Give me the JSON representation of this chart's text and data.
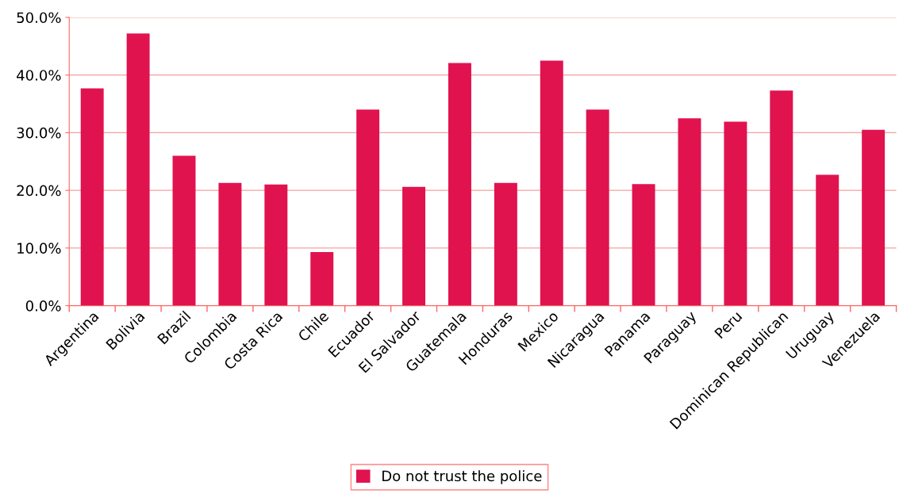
{
  "chart_data": {
    "type": "bar",
    "categories": [
      "Argentina",
      "Bolivia",
      "Brazil",
      "Colombia",
      "Costa Rica",
      "Chile",
      "Ecuador",
      "El Salvador",
      "Guatemala",
      "Honduras",
      "Mexico",
      "Nicaragua",
      "Panama",
      "Paraguay",
      "Peru",
      "Dominican Republican",
      "Uruguay",
      "Venezuela"
    ],
    "series": [
      {
        "name": "Do not trust the police",
        "color": "#e0134f",
        "values": [
          37.7,
          47.2,
          26.0,
          21.3,
          21.0,
          9.3,
          34.0,
          20.6,
          42.1,
          21.3,
          42.5,
          34.0,
          21.1,
          32.5,
          31.9,
          37.3,
          22.7,
          30.5
        ]
      }
    ],
    "ylim": [
      0,
      50
    ],
    "yticks": [
      {
        "value": 0,
        "label": "0.0%"
      },
      {
        "value": 10,
        "label": "10.0%"
      },
      {
        "value": 20,
        "label": "20.0%"
      },
      {
        "value": 30,
        "label": "30.0%"
      },
      {
        "value": 40,
        "label": "40.0%"
      },
      {
        "value": 50,
        "label": "50.0%"
      }
    ],
    "grid": "y",
    "legend": "bottom"
  }
}
